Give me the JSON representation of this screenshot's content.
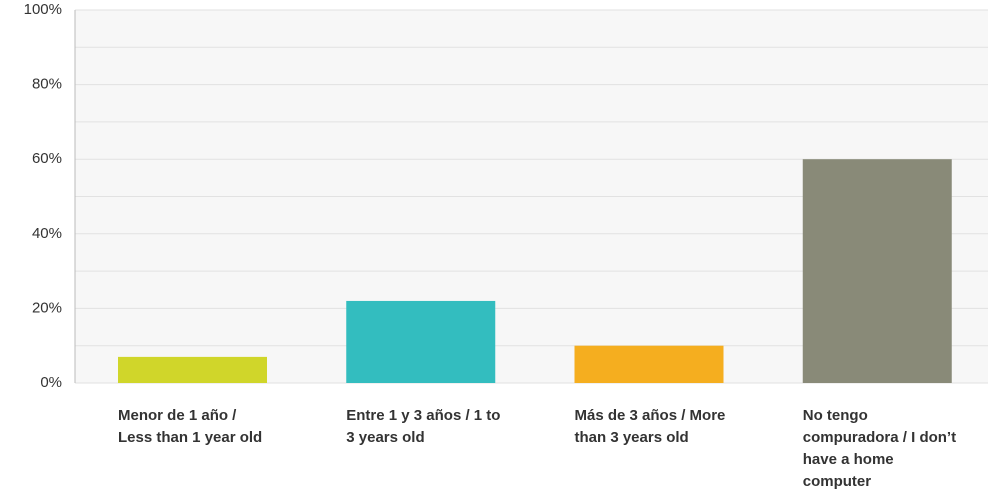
{
  "chart_data": {
    "type": "bar",
    "categories": [
      "Menor de 1 año / Less than 1 year old",
      "Entre 1 y 3 años / 1 to 3 years old",
      "Más de 3 años / More than 3 years old",
      "No tengo compuradora / I don’t have a home computer"
    ],
    "series": [
      {
        "colors": [
          "#d0d62a",
          "#33bdbf",
          "#f5ae1f",
          "#898a78"
        ],
        "values": [
          7,
          22,
          10,
          60
        ]
      }
    ],
    "ylim": [
      0,
      100
    ],
    "yticks": [
      {
        "value": 0,
        "label": "0%"
      },
      {
        "value": 20,
        "label": "20%"
      },
      {
        "value": 40,
        "label": "40%"
      },
      {
        "value": 60,
        "label": "60%"
      },
      {
        "value": 80,
        "label": "80%"
      },
      {
        "value": 100,
        "label": "100%"
      }
    ],
    "minor_yticks": [
      10,
      30,
      50,
      70,
      90
    ],
    "grid": true
  }
}
